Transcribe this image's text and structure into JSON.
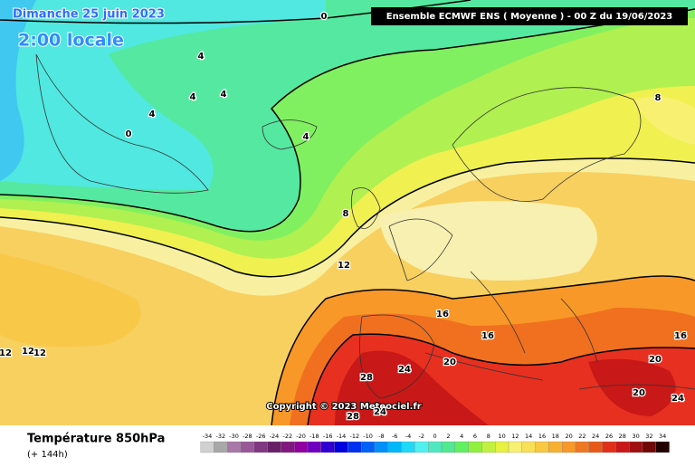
{
  "header": {
    "title": "Dimanche 25 juin 2023",
    "time": "2:00 locale",
    "run": "Ensemble ECMWF ENS  ( Moyenne )  -  00 Z du 19/06/2023",
    "copyright": "Copyright © 2023 Meteociel.fr"
  },
  "footer": {
    "variable": "Température 850hPa",
    "lead": "(+ 144h)"
  },
  "contour_labels": [
    0,
    4,
    4,
    4,
    4,
    0,
    4,
    8,
    8,
    12,
    12,
    12,
    12,
    16,
    16,
    16,
    20,
    20,
    20,
    24,
    24,
    28,
    28,
    24
  ],
  "legend": {
    "values": [
      -34,
      -32,
      -30,
      -28,
      -26,
      -24,
      -22,
      -20,
      -18,
      -16,
      -14,
      -12,
      -10,
      -8,
      -6,
      -4,
      -2,
      0,
      2,
      4,
      6,
      8,
      10,
      12,
      14,
      16,
      18,
      20,
      22,
      24,
      26,
      28,
      30,
      32,
      34
    ],
    "colors": [
      "#d0d0d0",
      "#a8a8a8",
      "#a878a8",
      "#985898",
      "#803880",
      "#682068",
      "#801880",
      "#9000a0",
      "#7000c0",
      "#3000d0",
      "#0000e0",
      "#0030f0",
      "#0060f8",
      "#0090f8",
      "#00b8f8",
      "#20d8f8",
      "#50f0f0",
      "#50e8c0",
      "#50e890",
      "#60f060",
      "#90f040",
      "#c0f040",
      "#e8f040",
      "#f8f070",
      "#f8e058",
      "#f8c840",
      "#f8b030",
      "#f89828",
      "#f07820",
      "#e85818",
      "#e03018",
      "#c81818",
      "#a01010",
      "#700808",
      "#200000"
    ]
  }
}
